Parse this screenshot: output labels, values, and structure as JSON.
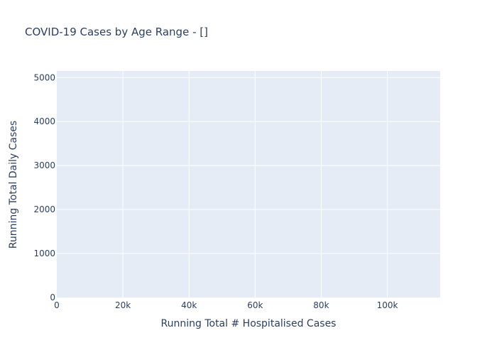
{
  "chart_data": {
    "type": "scatter",
    "title": "COVID-19 Cases by Age Range - []",
    "xlabel": "Running Total # Hospitalised Cases",
    "ylabel": "Running Total Daily Cases",
    "xlim": [
      0,
      116000
    ],
    "ylim": [
      0,
      5150
    ],
    "x_ticks": [
      {
        "value": 0,
        "label": "0"
      },
      {
        "value": 20000,
        "label": "20k"
      },
      {
        "value": 40000,
        "label": "40k"
      },
      {
        "value": 60000,
        "label": "60k"
      },
      {
        "value": 80000,
        "label": "80k"
      },
      {
        "value": 100000,
        "label": "100k"
      }
    ],
    "y_ticks": [
      {
        "value": 0,
        "label": "0"
      },
      {
        "value": 1000,
        "label": "1000"
      },
      {
        "value": 2000,
        "label": "2000"
      },
      {
        "value": 3000,
        "label": "3000"
      },
      {
        "value": 4000,
        "label": "4000"
      },
      {
        "value": 5000,
        "label": "5000"
      }
    ],
    "grid": true,
    "series": [],
    "colors": {
      "plot_background": "#e5ecf6",
      "grid": "#ffffff",
      "text": "#2a3f5f"
    }
  }
}
